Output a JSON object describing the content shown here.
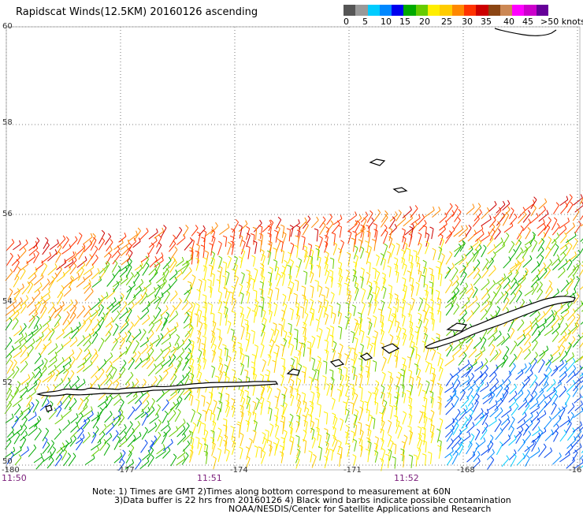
{
  "title": "Rapidscat Winds(12.5KM) 20160126 ascending",
  "legend": {
    "swatches": [
      "#555555",
      "#999999",
      "#00ccff",
      "#0088ff",
      "#0000ee",
      "#00aa00",
      "#66cc00",
      "#ffee00",
      "#ffcc00",
      "#ff8800",
      "#ff3300",
      "#cc0000",
      "#8b4513",
      "#cc8855",
      "#ff00ff",
      "#cc00cc",
      "#660099"
    ],
    "labels": [
      "0",
      "5",
      "10",
      "15",
      "20",
      "25",
      "30",
      "35",
      "40",
      "45"
    ],
    "unit_label": ">50 knots"
  },
  "map": {
    "lat_labels": [
      "60",
      "58",
      "56",
      "54",
      "52",
      "50"
    ],
    "lon_labels": [
      "-180",
      "-177",
      "-174",
      "-171",
      "-168",
      "-16"
    ],
    "time_labels": [
      "11:50",
      "11:51",
      "11:52"
    ]
  },
  "notes": [
    "Note: 1) Times are GMT 2)Times along bottom correspond to measurement at 60N",
    "3)Data buffer is 22 hrs from 20160126 4) Black wind barbs indicate possible contamination",
    "NOAA/NESDIS/Center for Satellite Applications and Research"
  ]
}
